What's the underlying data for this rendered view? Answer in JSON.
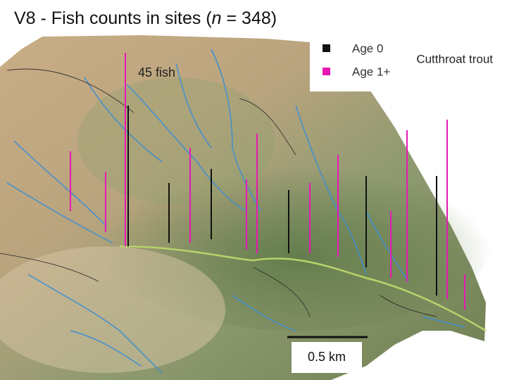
{
  "title": {
    "prefix": "V8 - Fish counts in sites (",
    "n": "n",
    "suffix": " = 348)"
  },
  "legend": {
    "items": [
      {
        "label": "Age 0",
        "color": "#111111"
      },
      {
        "label": "Age 1+",
        "color": "#e619b4"
      }
    ],
    "species": "Cutthroat trout"
  },
  "annotations": {
    "reference": "45 fish",
    "scale": "0.5 km"
  }
}
